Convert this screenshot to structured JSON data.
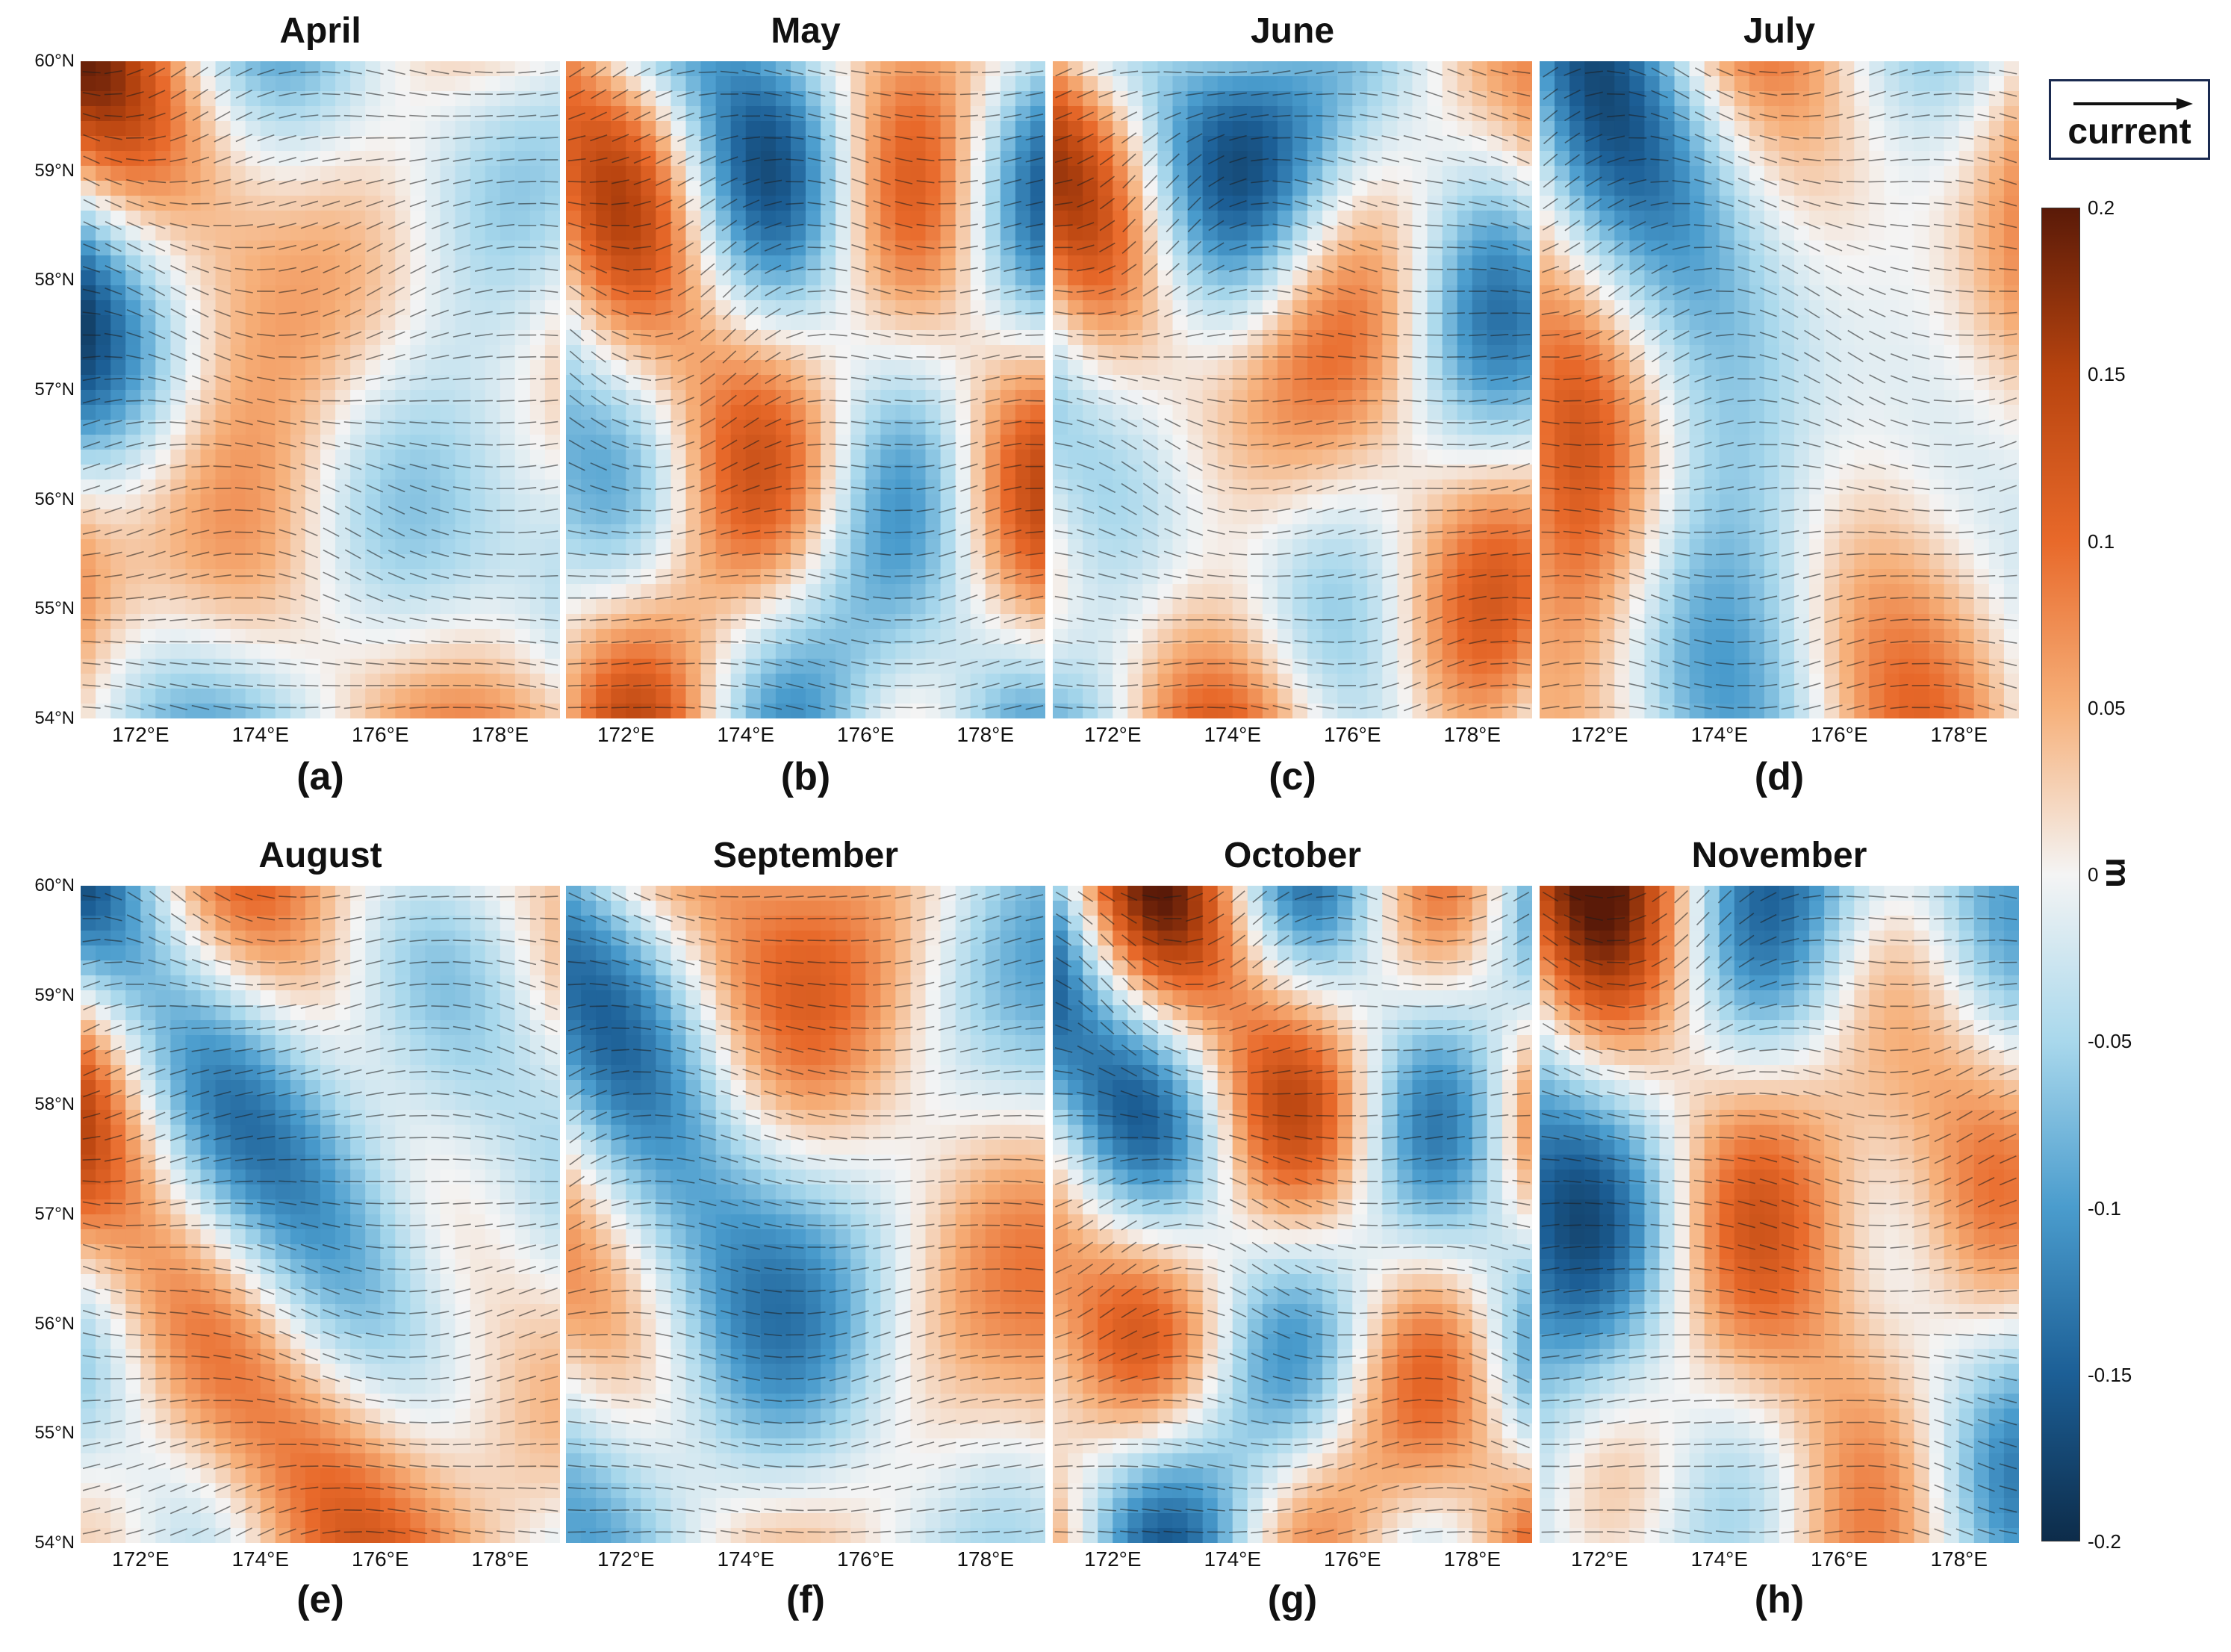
{
  "chart_data": {
    "type": "heatmap",
    "description_note": "",
    "panels": [
      {
        "title": "April",
        "letter": "(a)"
      },
      {
        "title": "May",
        "letter": "(b)"
      },
      {
        "title": "June",
        "letter": "(c)"
      },
      {
        "title": "July",
        "letter": "(d)"
      },
      {
        "title": "August",
        "letter": "(e)"
      },
      {
        "title": "September",
        "letter": "(f)"
      },
      {
        "title": "October",
        "letter": "(g)"
      },
      {
        "title": "November",
        "letter": "(h)"
      }
    ],
    "y_ticks": [
      "60°N",
      "59°N",
      "58°N",
      "57°N",
      "56°N",
      "55°N",
      "54°N"
    ],
    "x_ticks": [
      "172°E",
      "174°E",
      "176°E",
      "178°E"
    ],
    "xlim": [
      171,
      179
    ],
    "ylim": [
      54,
      60
    ],
    "colorbar": {
      "ticks": [
        "0.2",
        "0.15",
        "0.1",
        "0.05",
        "0",
        "-0.05",
        "-0.1",
        "-0.15",
        "-0.2"
      ],
      "range": [
        -0.2,
        0.2
      ],
      "unit": "m",
      "colors": [
        "#0d2c4a",
        "#1c5f96",
        "#4a9ccd",
        "#a9d8ec",
        "#f4f4f4",
        "#f6b07a",
        "#e8692a",
        "#b8440f",
        "#5a1a08"
      ]
    },
    "legend": {
      "label": "current"
    }
  }
}
